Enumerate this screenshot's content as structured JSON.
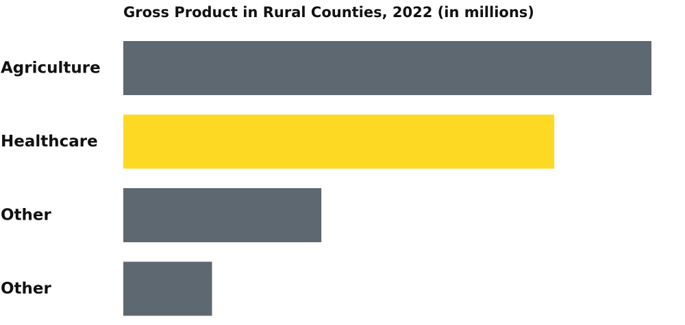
{
  "chart_data": {
    "type": "bar",
    "orientation": "horizontal",
    "title": "Gross Product in Rural Counties, 2022 (in millions)",
    "categories": [
      "Agriculture",
      "Healthcare",
      "Other",
      "Other"
    ],
    "values": [
      100,
      81.6,
      37.5,
      16.8
    ],
    "xlim": [
      0,
      100
    ],
    "grid": false,
    "colors": [
      "#5e6870",
      "#fed923",
      "#5e6870",
      "#5e6870"
    ],
    "highlight_color": "#fed923",
    "bar_color": "#5e6870"
  }
}
